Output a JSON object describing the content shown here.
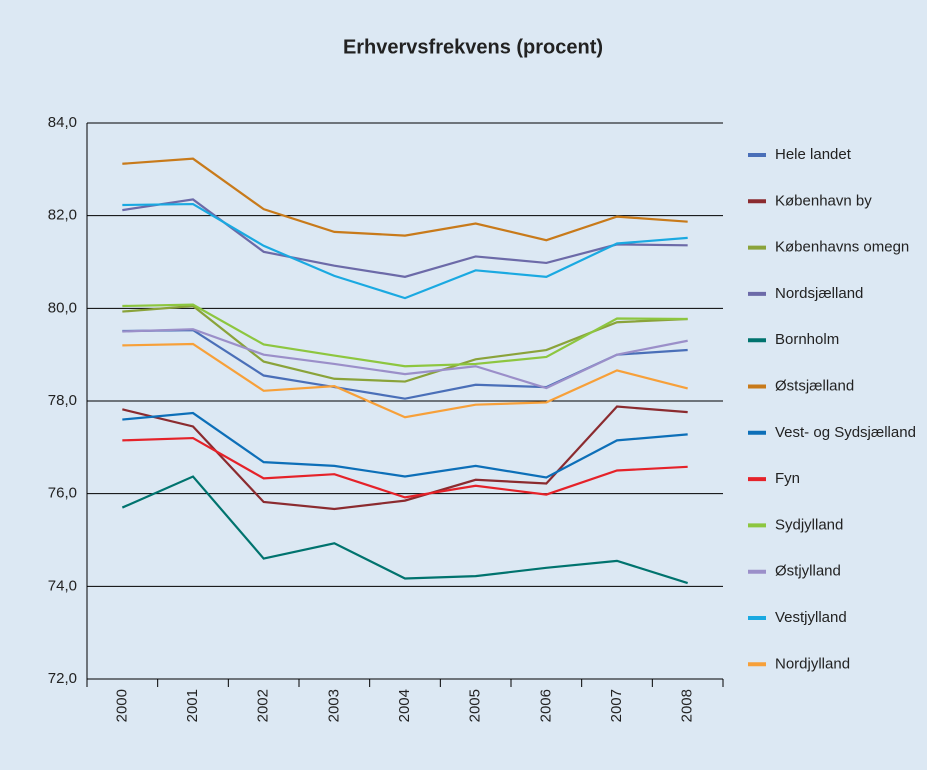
{
  "chart_data": {
    "type": "line",
    "title": "Erhvervsfrekvens (procent)",
    "categories": [
      "2000",
      "2001",
      "2002",
      "2003",
      "2004",
      "2005",
      "2006",
      "2007",
      "2008"
    ],
    "ylim": [
      72,
      84
    ],
    "yticks": [
      {
        "value": 72,
        "label": "72,0"
      },
      {
        "value": 74,
        "label": "74,0"
      },
      {
        "value": 76,
        "label": "76,0"
      },
      {
        "value": 78,
        "label": "78,0"
      },
      {
        "value": 80,
        "label": "80,0"
      },
      {
        "value": 82,
        "label": "82,0"
      },
      {
        "value": 84,
        "label": "84,0"
      }
    ],
    "grid": true,
    "legend": "right",
    "series": [
      {
        "name": "Hele landet",
        "color": "#4a6fb8",
        "values": [
          79.51,
          79.53,
          78.55,
          78.3,
          78.05,
          78.35,
          78.3,
          79.0,
          79.1
        ]
      },
      {
        "name": "København by",
        "color": "#8b2b2f",
        "values": [
          77.82,
          77.45,
          75.82,
          75.67,
          75.85,
          76.3,
          76.22,
          77.88,
          77.76
        ]
      },
      {
        "name": "Københavns omegn",
        "color": "#8aa33a",
        "values": [
          79.93,
          80.05,
          78.85,
          78.48,
          78.42,
          78.9,
          79.1,
          79.7,
          79.77
        ]
      },
      {
        "name": "Nordsjælland",
        "color": "#6c6aa8",
        "values": [
          82.12,
          82.35,
          81.22,
          80.92,
          80.68,
          81.12,
          80.98,
          81.38,
          81.36
        ]
      },
      {
        "name": "Bornholm",
        "color": "#00736e",
        "values": [
          75.7,
          76.37,
          74.6,
          74.93,
          74.17,
          74.22,
          74.4,
          74.55,
          74.07
        ]
      },
      {
        "name": "Østsjælland",
        "color": "#c87a1a",
        "values": [
          83.12,
          83.23,
          82.14,
          81.65,
          81.57,
          81.83,
          81.47,
          81.98,
          81.87
        ]
      },
      {
        "name": "Vest- og Sydsjælland",
        "color": "#0d6fb8",
        "values": [
          77.6,
          77.74,
          76.68,
          76.6,
          76.37,
          76.6,
          76.35,
          77.15,
          77.28
        ]
      },
      {
        "name": "Fyn",
        "color": "#e52229",
        "values": [
          77.15,
          77.2,
          76.33,
          76.42,
          75.92,
          76.17,
          75.98,
          76.5,
          76.58
        ]
      },
      {
        "name": "Sydjylland",
        "color": "#8dc63f",
        "values": [
          80.05,
          80.08,
          79.22,
          78.98,
          78.75,
          78.8,
          78.95,
          79.78,
          79.77
        ]
      },
      {
        "name": "Østjylland",
        "color": "#9b8fc9",
        "values": [
          79.5,
          79.55,
          79.0,
          78.8,
          78.58,
          78.75,
          78.28,
          79.0,
          79.3
        ]
      },
      {
        "name": "Vestjylland",
        "color": "#1aa9e1",
        "values": [
          82.23,
          82.25,
          81.35,
          80.7,
          80.22,
          80.82,
          80.68,
          81.4,
          81.52
        ]
      },
      {
        "name": "Nordjylland",
        "color": "#f7a039",
        "values": [
          79.2,
          79.23,
          78.22,
          78.32,
          77.65,
          77.92,
          77.97,
          78.66,
          78.27
        ]
      }
    ]
  }
}
